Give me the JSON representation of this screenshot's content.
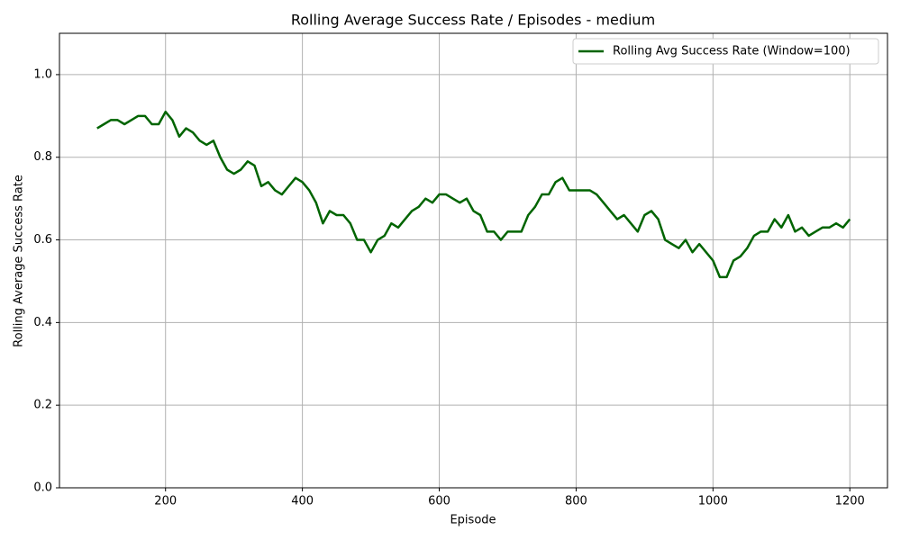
{
  "chart_data": {
    "type": "line",
    "title": "Rolling Average Success Rate / Episodes - medium",
    "xlabel": "Episode",
    "ylabel": "Rolling Average Success Rate",
    "x": [
      100,
      110,
      120,
      130,
      140,
      150,
      160,
      170,
      180,
      190,
      200,
      210,
      220,
      230,
      240,
      250,
      260,
      270,
      280,
      290,
      300,
      310,
      320,
      330,
      340,
      350,
      360,
      370,
      380,
      390,
      400,
      410,
      420,
      430,
      440,
      450,
      460,
      470,
      480,
      490,
      500,
      510,
      520,
      530,
      540,
      550,
      560,
      570,
      580,
      590,
      600,
      610,
      620,
      630,
      640,
      650,
      660,
      670,
      680,
      690,
      700,
      710,
      720,
      730,
      740,
      750,
      760,
      770,
      780,
      790,
      800,
      810,
      820,
      830,
      840,
      850,
      860,
      870,
      880,
      890,
      900,
      910,
      920,
      930,
      940,
      950,
      960,
      970,
      980,
      990,
      1000,
      1010,
      1020,
      1030,
      1040,
      1050,
      1060,
      1070,
      1080,
      1090,
      1100,
      1110,
      1120,
      1130,
      1140,
      1150,
      1160,
      1170,
      1180,
      1190,
      1200
    ],
    "series": [
      {
        "name": "Rolling Avg Success Rate (Window=100)",
        "color": "#006400",
        "values": [
          0.87,
          0.88,
          0.89,
          0.89,
          0.88,
          0.89,
          0.9,
          0.9,
          0.88,
          0.88,
          0.91,
          0.89,
          0.85,
          0.87,
          0.86,
          0.84,
          0.83,
          0.84,
          0.8,
          0.77,
          0.76,
          0.77,
          0.79,
          0.78,
          0.73,
          0.74,
          0.72,
          0.71,
          0.73,
          0.75,
          0.74,
          0.72,
          0.69,
          0.64,
          0.67,
          0.66,
          0.66,
          0.64,
          0.6,
          0.6,
          0.57,
          0.6,
          0.61,
          0.64,
          0.63,
          0.65,
          0.67,
          0.68,
          0.7,
          0.69,
          0.71,
          0.71,
          0.7,
          0.69,
          0.7,
          0.67,
          0.66,
          0.62,
          0.62,
          0.6,
          0.62,
          0.62,
          0.62,
          0.66,
          0.68,
          0.71,
          0.71,
          0.74,
          0.75,
          0.72,
          0.72,
          0.72,
          0.72,
          0.71,
          0.69,
          0.67,
          0.65,
          0.66,
          0.64,
          0.62,
          0.66,
          0.67,
          0.65,
          0.6,
          0.59,
          0.58,
          0.6,
          0.57,
          0.59,
          0.57,
          0.55,
          0.51,
          0.51,
          0.55,
          0.56,
          0.58,
          0.61,
          0.62,
          0.62,
          0.65,
          0.63,
          0.66,
          0.62,
          0.63,
          0.61,
          0.62,
          0.63,
          0.63,
          0.64,
          0.63,
          0.65
        ]
      }
    ],
    "xlim": [
      45,
      1255
    ],
    "ylim": [
      0,
      1.1
    ],
    "xticks": [
      200,
      400,
      600,
      800,
      1000,
      1200
    ],
    "yticks": [
      {
        "value": 0,
        "label": "0.0"
      },
      0.2,
      0.4,
      0.6,
      0.8,
      {
        "value": 1,
        "label": "1.0"
      }
    ],
    "grid": true,
    "legend": "upper right"
  }
}
